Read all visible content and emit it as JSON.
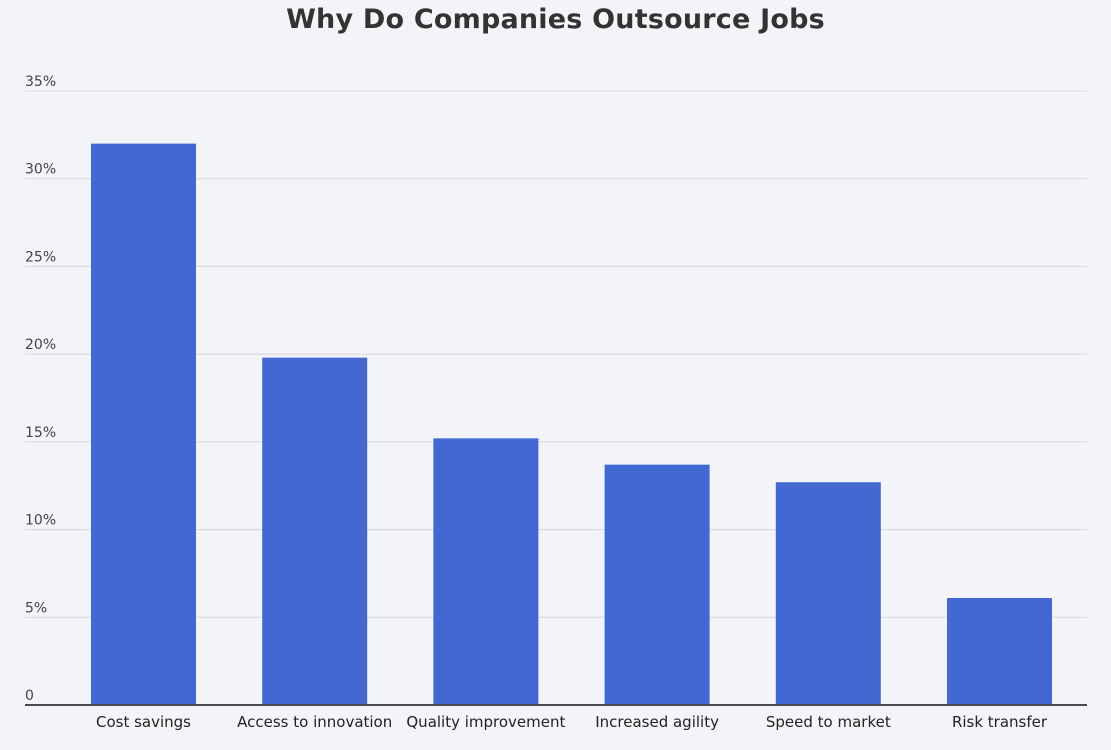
{
  "chart_data": {
    "type": "bar",
    "title": "Why Do Companies Outsource Jobs",
    "xlabel": "",
    "ylabel": "",
    "categories": [
      "Cost savings",
      "Access to innovation",
      "Quality improvement",
      "Increased agility",
      "Speed to market",
      "Risk transfer"
    ],
    "values": [
      32.0,
      19.8,
      15.2,
      13.7,
      12.7,
      6.1
    ],
    "ylim": [
      0,
      35
    ],
    "yticks": [
      0,
      5,
      10,
      15,
      20,
      25,
      30,
      35
    ],
    "ytick_labels": [
      "0",
      "5%",
      "10%",
      "15%",
      "20%",
      "25%",
      "30%",
      "35%"
    ],
    "grid": true,
    "bar_color": "#4169d1"
  }
}
